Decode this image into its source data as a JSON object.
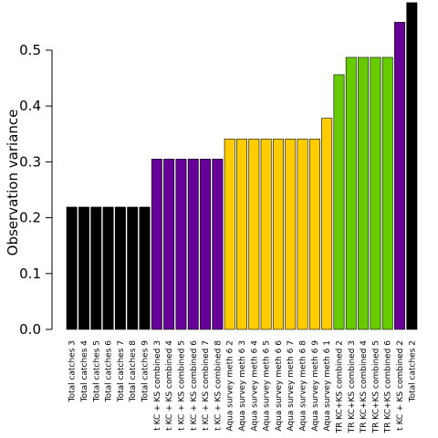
{
  "chart_data": {
    "type": "bar",
    "ylabel": "Observation variance",
    "xlabel": "",
    "ylim": [
      0,
      0.58
    ],
    "yticks": [
      0.0,
      0.1,
      0.2,
      0.3,
      0.4,
      0.5
    ],
    "ytick_labels": [
      "0.0",
      "0.1",
      "0.2",
      "0.3",
      "0.4",
      "0.5"
    ],
    "grid": false,
    "colors": {
      "black": "#000000",
      "purple": "#660099",
      "gold": "#FFCC00",
      "green": "#66CC00"
    },
    "bars": [
      {
        "label": "Total catches 3",
        "value": 0.219,
        "color": "black"
      },
      {
        "label": "Total catches 4",
        "value": 0.219,
        "color": "black"
      },
      {
        "label": "Total catches 5",
        "value": 0.219,
        "color": "black"
      },
      {
        "label": "Total catches 6",
        "value": 0.219,
        "color": "black"
      },
      {
        "label": "Total catches 7",
        "value": 0.219,
        "color": "black"
      },
      {
        "label": "Total catches 8",
        "value": 0.219,
        "color": "black"
      },
      {
        "label": "Total catches 9",
        "value": 0.219,
        "color": "black"
      },
      {
        "label": "t KC + KS combined 3",
        "value": 0.305,
        "color": "purple"
      },
      {
        "label": "t KC + KS combined 4",
        "value": 0.305,
        "color": "purple"
      },
      {
        "label": "t KC + KS combined 5",
        "value": 0.305,
        "color": "purple"
      },
      {
        "label": "t KC + KS combined 6",
        "value": 0.305,
        "color": "purple"
      },
      {
        "label": "t KC + KS combined 7",
        "value": 0.305,
        "color": "purple"
      },
      {
        "label": "t KC + KS combined 8",
        "value": 0.305,
        "color": "purple"
      },
      {
        "label": "Aqua survey meth 6 2",
        "value": 0.341,
        "color": "gold"
      },
      {
        "label": "Aqua survey meth 6 3",
        "value": 0.341,
        "color": "gold"
      },
      {
        "label": "Aqua survey meth 6 4",
        "value": 0.341,
        "color": "gold"
      },
      {
        "label": "Aqua survey meth 6 5",
        "value": 0.341,
        "color": "gold"
      },
      {
        "label": "Aqua survey meth 6 6",
        "value": 0.341,
        "color": "gold"
      },
      {
        "label": "Aqua survey meth 6 7",
        "value": 0.341,
        "color": "gold"
      },
      {
        "label": "Aqua survey meth 6 8",
        "value": 0.341,
        "color": "gold"
      },
      {
        "label": "Aqua survey meth 6 9",
        "value": 0.341,
        "color": "gold"
      },
      {
        "label": "Aqua survey meth 6 1",
        "value": 0.378,
        "color": "gold"
      },
      {
        "label": "TR KC+KS combined 2",
        "value": 0.456,
        "color": "green"
      },
      {
        "label": "TR KC+KS combined 3",
        "value": 0.487,
        "color": "green"
      },
      {
        "label": "TR KC+KS combined 4",
        "value": 0.487,
        "color": "green"
      },
      {
        "label": "TR KC+KS combined 5",
        "value": 0.487,
        "color": "green"
      },
      {
        "label": "TR KC+KS combined 6",
        "value": 0.487,
        "color": "green"
      },
      {
        "label": "t KC + KS combined 2",
        "value": 0.55,
        "color": "purple"
      },
      {
        "label": "Total catches 2",
        "value": 0.585,
        "color": "black"
      }
    ]
  }
}
